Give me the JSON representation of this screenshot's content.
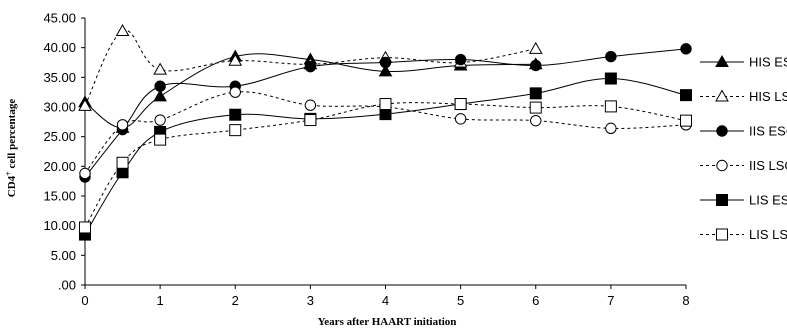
{
  "chart_data": {
    "type": "line",
    "xlabel": "Years after HAART initiation",
    "ylabel_prefix": "CD4",
    "ylabel_superscript": "+",
    "ylabel_suffix": " cell percentage",
    "ylim": [
      0,
      45
    ],
    "xlim": [
      0,
      8
    ],
    "x_ticks": [
      0,
      1,
      2,
      3,
      4,
      5,
      6,
      7,
      8
    ],
    "x_tick_labels": [
      "0",
      "1",
      "2",
      "3",
      "4",
      "5",
      "6",
      "7",
      "8"
    ],
    "y_ticks": [
      0,
      5,
      10,
      15,
      20,
      25,
      30,
      35,
      40,
      45
    ],
    "y_tick_labels": [
      ".00",
      "5.00",
      "10.00",
      "15.00",
      "20.00",
      "25.00",
      "30.00",
      "35.00",
      "40.00",
      "45.00"
    ],
    "grid": false,
    "legend_position": "right",
    "series": [
      {
        "name": "HIS ESC",
        "marker": "triangle",
        "filled": true,
        "dashed": false,
        "x": [
          0,
          0.5,
          1,
          2,
          3,
          4,
          5,
          6
        ],
        "y": [
          30.8,
          26.5,
          31.8,
          38.5,
          38.0,
          36.0,
          37.0,
          37.2
        ]
      },
      {
        "name": "HIS LSC",
        "marker": "triangle",
        "filled": false,
        "dashed": true,
        "x": [
          0,
          0.5,
          1,
          2,
          3,
          4,
          5,
          6
        ],
        "y": [
          30.2,
          42.8,
          36.3,
          37.8,
          37.2,
          38.3,
          37.5,
          39.8
        ]
      },
      {
        "name": "IIS ESC",
        "marker": "circle",
        "filled": true,
        "dashed": false,
        "x": [
          0,
          0.5,
          1,
          2,
          3,
          4,
          5,
          6,
          7,
          8
        ],
        "y": [
          18.2,
          26.2,
          33.5,
          33.5,
          36.8,
          37.5,
          38.0,
          37.0,
          38.5,
          39.8
        ]
      },
      {
        "name": "IIS LSC",
        "marker": "circle",
        "filled": false,
        "dashed": true,
        "x": [
          0,
          0.5,
          1,
          2,
          3,
          4,
          5,
          6,
          7,
          8
        ],
        "y": [
          18.8,
          27.0,
          27.8,
          32.5,
          30.3,
          30.0,
          28.0,
          27.7,
          26.4,
          27.0
        ]
      },
      {
        "name": "LIS ESC",
        "marker": "square",
        "filled": true,
        "dashed": false,
        "x": [
          0,
          0.5,
          1,
          2,
          3,
          4,
          5,
          6,
          7,
          8
        ],
        "y": [
          8.5,
          19.0,
          25.8,
          28.7,
          28.0,
          28.8,
          30.5,
          32.3,
          34.8,
          32.0
        ]
      },
      {
        "name": "LIS LSC",
        "marker": "square",
        "filled": false,
        "dashed": true,
        "x": [
          0,
          0.5,
          1,
          2,
          3,
          4,
          5,
          6,
          7,
          8
        ],
        "y": [
          9.7,
          20.6,
          24.5,
          26.1,
          27.8,
          30.5,
          30.5,
          29.9,
          30.1,
          27.7
        ]
      }
    ]
  }
}
